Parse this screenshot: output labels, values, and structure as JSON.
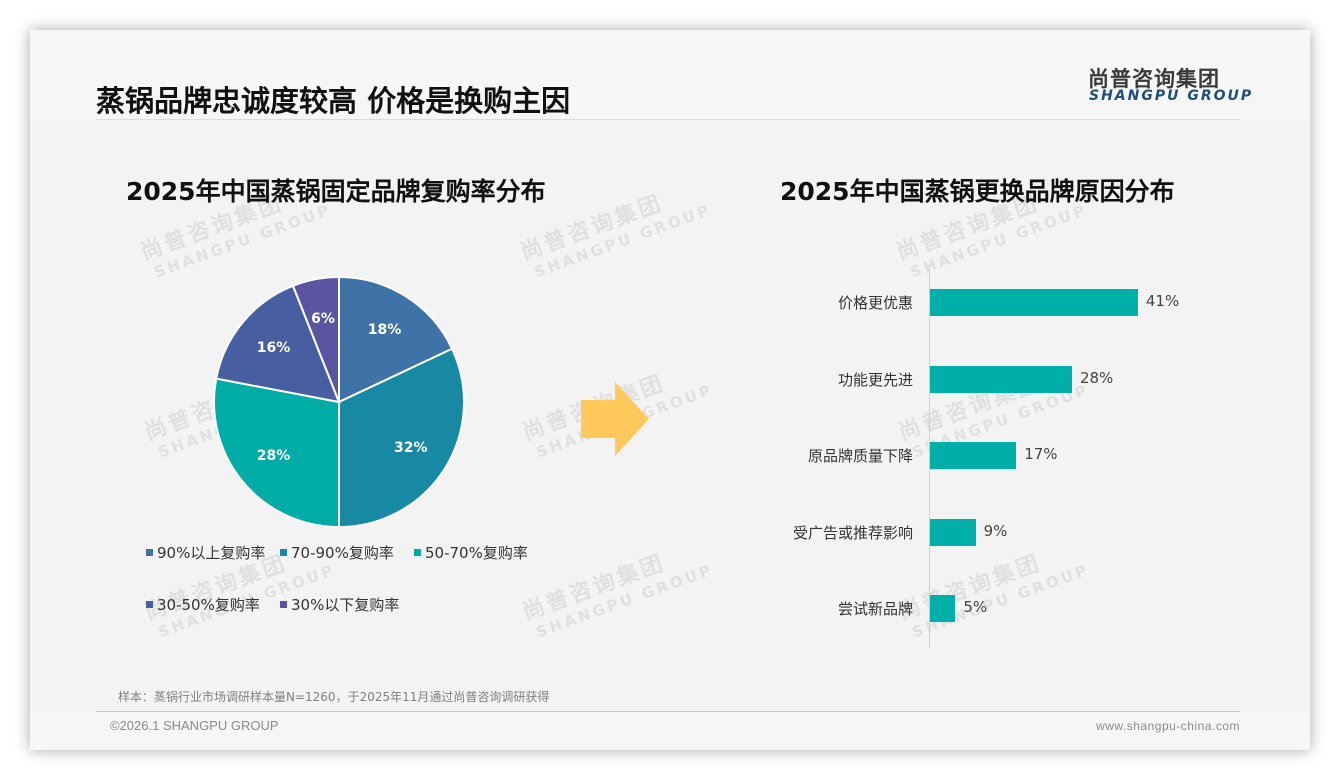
{
  "header": {
    "title": "蒸锅品牌忠诚度较高 价格是换购主因",
    "logo_cn": "尚普咨询集团",
    "logo_en": "SHANGPU GROUP"
  },
  "watermark": {
    "cn": "尚普咨询集团",
    "en": "SHANGPU GROUP"
  },
  "arrow": {
    "color": "#ffc95c"
  },
  "chart_data": [
    {
      "type": "pie",
      "title": "2025年中国蒸锅固定品牌复购率分布",
      "categories": [
        "90%以上复购率",
        "70-90%复购率",
        "50-70%复购率",
        "30-50%复购率",
        "30%以下复购率"
      ],
      "values": [
        18,
        32,
        28,
        16,
        6
      ],
      "labels": [
        "18%",
        "32%",
        "28%",
        "16%",
        "6%"
      ],
      "colors": [
        "#3f72a6",
        "#1889a3",
        "#00ada6",
        "#475fa0",
        "#5b55a1"
      ],
      "legend_position": "bottom",
      "start_angle": "12 o'clock, clockwise"
    },
    {
      "type": "bar",
      "orientation": "horizontal",
      "title": "2025年中国蒸锅更换品牌原因分布",
      "categories": [
        "价格更优惠",
        "功能更先进",
        "原品牌质量下降",
        "受广告或推荐影响",
        "尝试新品牌"
      ],
      "values": [
        41,
        28,
        17,
        9,
        5
      ],
      "labels": [
        "41%",
        "28%",
        "17%",
        "9%",
        "5%"
      ],
      "color": "#00b0a8",
      "xlabel": "",
      "ylabel": "",
      "grid": false
    }
  ],
  "footer": {
    "note": "样本：蒸锅行业市场调研样本量N=1260，于2025年11月通过尚普咨询调研获得",
    "copyright": "©2026.1 SHANGPU GROUP",
    "website": "www.shangpu-china.com"
  }
}
